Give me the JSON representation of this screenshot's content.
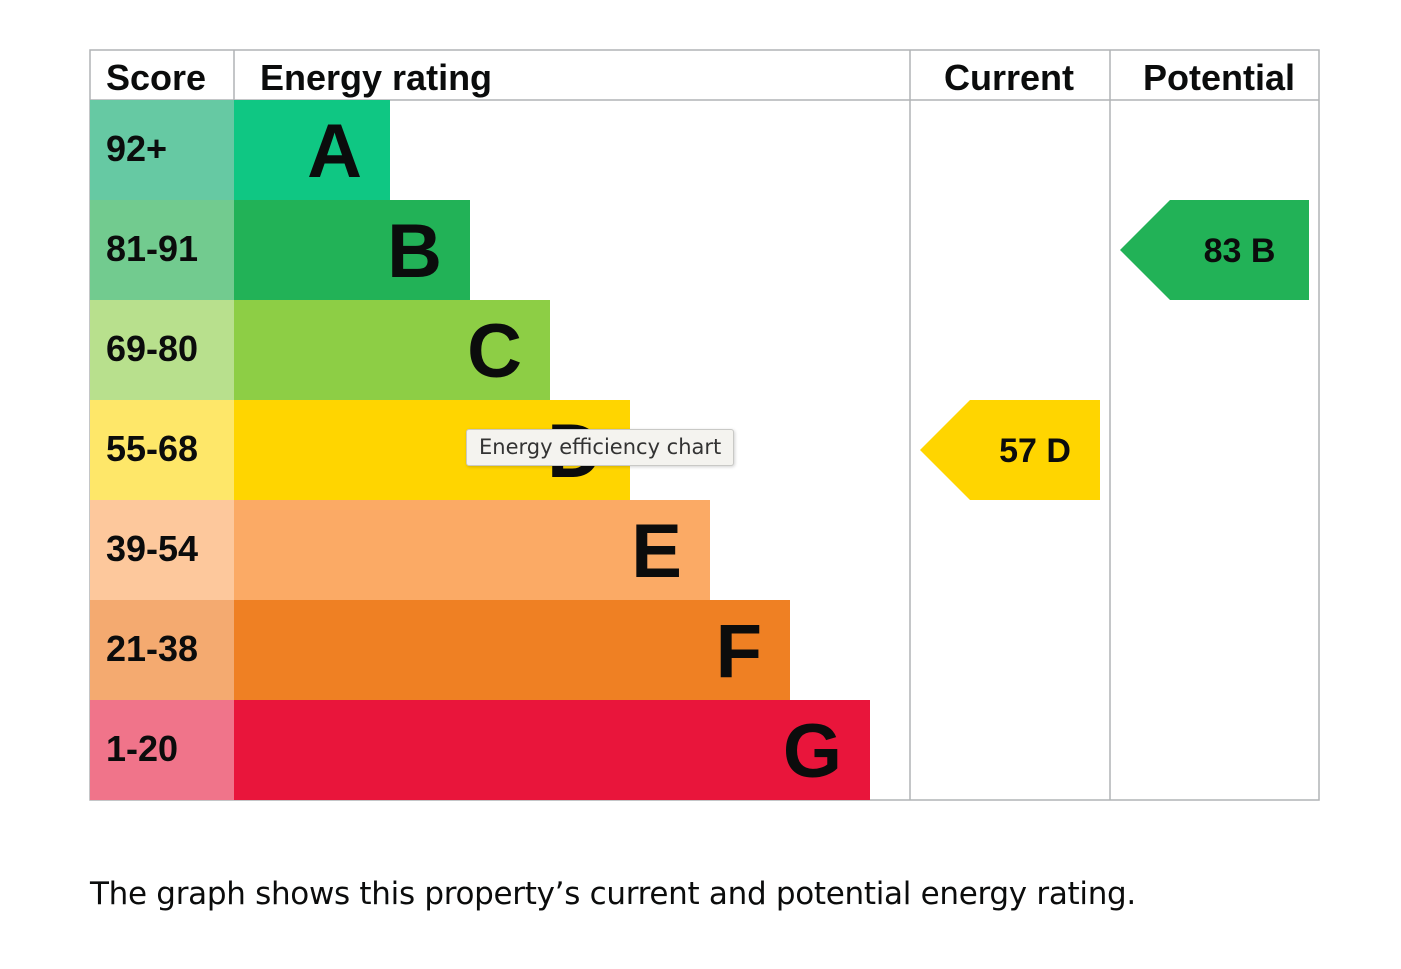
{
  "chart_data": {
    "type": "bar",
    "headers": {
      "score": "Score",
      "rating": "Energy rating",
      "current": "Current",
      "potential": "Potential"
    },
    "bands": [
      {
        "letter": "A",
        "score_range": "92+",
        "color": "#0fc783",
        "score_color": "#66c9a3"
      },
      {
        "letter": "B",
        "score_range": "81-91",
        "color": "#22b257",
        "score_color": "#72cb8f"
      },
      {
        "letter": "C",
        "score_range": "69-80",
        "color": "#8dce45",
        "score_color": "#b8e08d"
      },
      {
        "letter": "D",
        "score_range": "55-68",
        "color": "#ffd500",
        "score_color": "#fee769"
      },
      {
        "letter": "E",
        "score_range": "39-54",
        "color": "#fbaa65",
        "score_color": "#fdc89c"
      },
      {
        "letter": "F",
        "score_range": "21-38",
        "color": "#ef8023",
        "score_color": "#f4aa70"
      },
      {
        "letter": "G",
        "score_range": "1-20",
        "color": "#e9153b",
        "score_color": "#f0748a"
      }
    ],
    "current": {
      "score": 57,
      "band": "D",
      "label": "57  D",
      "color": "#ffd500"
    },
    "potential": {
      "score": 83,
      "band": "B",
      "label": "83  B",
      "color": "#22b257"
    }
  },
  "tooltip": "Energy efficiency chart",
  "caption": "The graph shows this property’s current and potential energy rating."
}
